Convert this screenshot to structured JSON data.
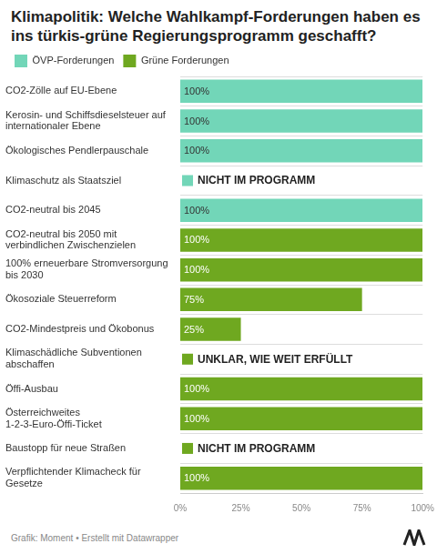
{
  "chart_data": {
    "type": "bar",
    "orientation": "horizontal",
    "title": "Klimapolitik: Welche Wahlkampf-Forderungen haben es ins türkis-grüne Regierungsprogramm geschafft?",
    "source": "Grafik: Moment • Erstellt mit Datawrapper",
    "categories": [
      "CO2-Zölle auf EU-Ebene",
      "Kerosin- und Schiffsdieselsteuer auf internationaler Ebene",
      "Ökologisches Pendlerpauschale",
      "Klimaschutz als Staatsziel",
      "CO2-neutral bis 2045",
      "CO2-neutral bis 2050 mit verbindlichen Zwischenzielen",
      "100% erneuerbare Stromversorgung bis 2030",
      "Ökosoziale Steuerreform",
      "CO2-Mindestpreis und Ökobonus",
      "Klimaschädliche Subventionen abschaffen",
      "Öffi-Ausbau",
      "Österreichweites 1-2-3-Euro-Öffi-Ticket",
      "Baustopp für neue Straßen",
      "Verpflichtender Klimacheck für Gesetze"
    ],
    "series": [
      {
        "name": "ÖVP-Forderungen",
        "color": "#72d6b8",
        "values": [
          100,
          100,
          100,
          null,
          100,
          null,
          null,
          null,
          null,
          null,
          null,
          null,
          null,
          null
        ],
        "value_labels": [
          "100%",
          "100%",
          "100%",
          "NICHT IM PROGRAMM",
          "100%",
          null,
          null,
          null,
          null,
          null,
          null,
          null,
          null,
          null
        ]
      },
      {
        "name": "Grüne Forderungen",
        "color": "#6fa820",
        "values": [
          null,
          null,
          null,
          null,
          null,
          100,
          100,
          75,
          25,
          null,
          100,
          100,
          null,
          100
        ],
        "value_labels": [
          null,
          null,
          null,
          null,
          null,
          "100%",
          "100%",
          "75%",
          "25%",
          "UNKLAR, WIE WEIT ERFÜLLT",
          "100%",
          "100%",
          "NICHT IM PROGRAMM",
          "100%"
        ]
      }
    ],
    "xlim": [
      0,
      100
    ],
    "xticks": [
      {
        "value": 0,
        "label": "0%"
      },
      {
        "value": 25,
        "label": "25%"
      },
      {
        "value": 50,
        "label": "50%"
      },
      {
        "value": 75,
        "label": "75%"
      },
      {
        "value": 100,
        "label": "100%"
      }
    ],
    "grid": true,
    "legend": "top-left",
    "data_labels": true
  }
}
